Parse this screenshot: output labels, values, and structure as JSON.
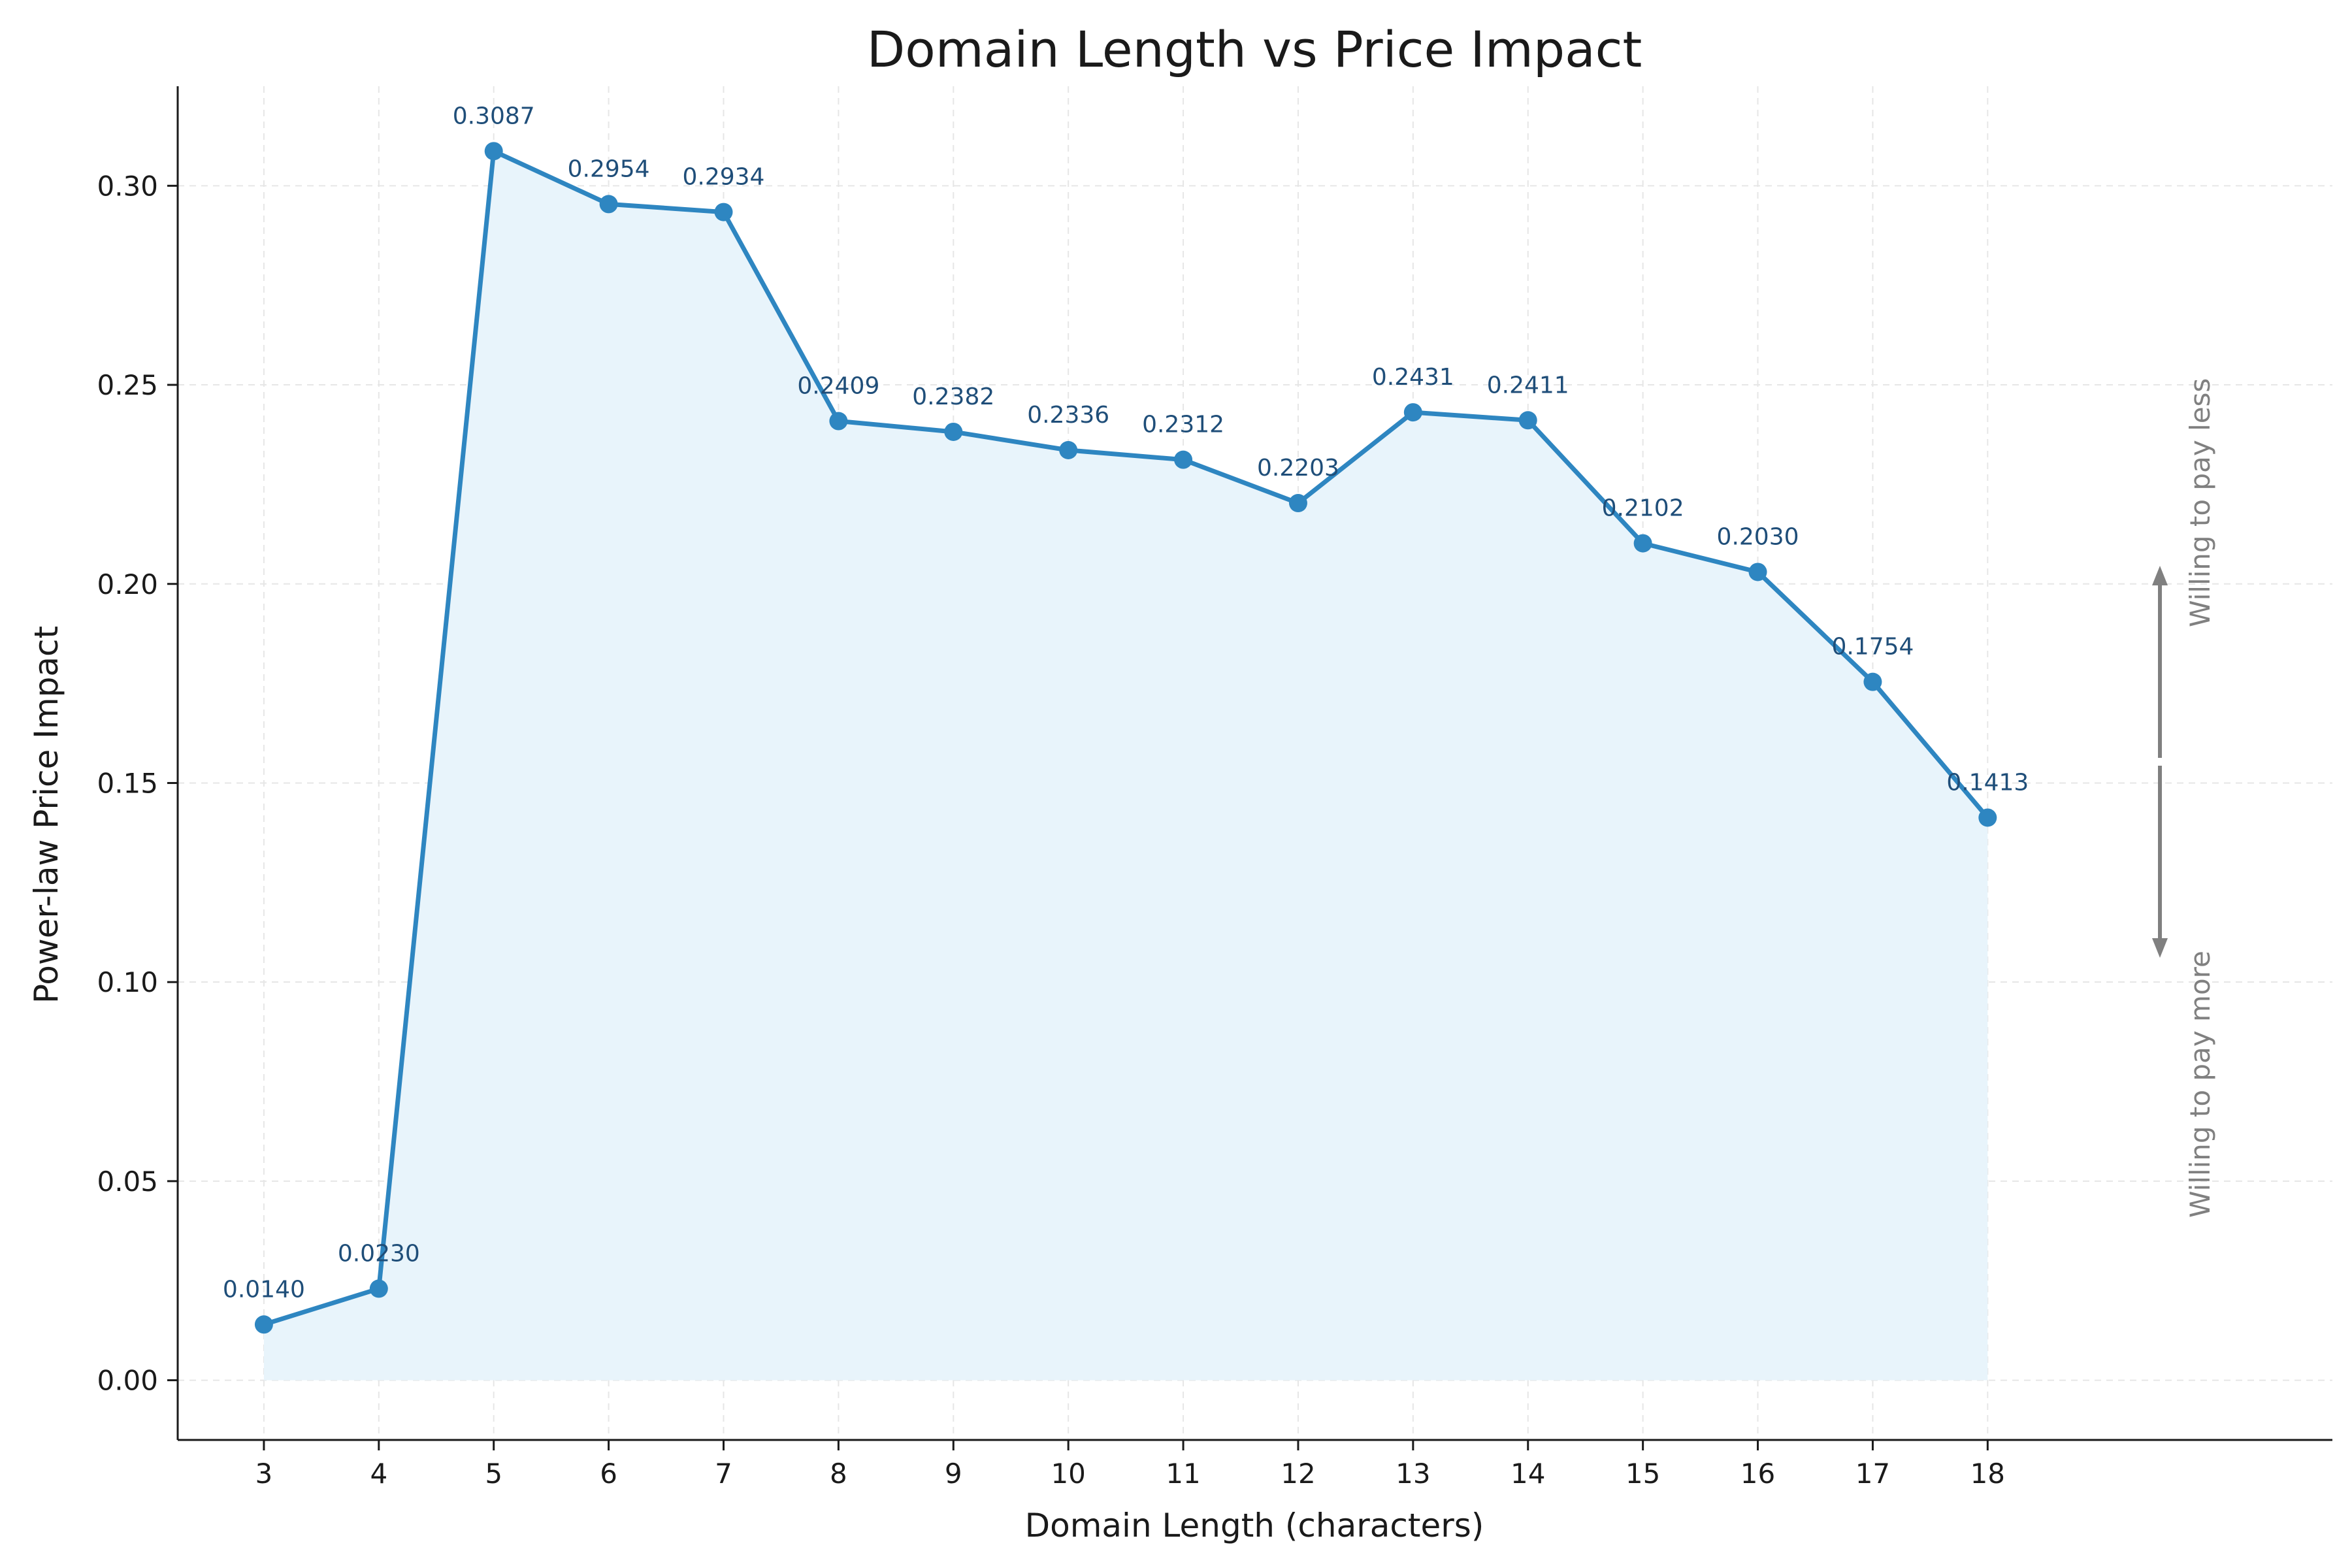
{
  "chart_data": {
    "type": "line",
    "title": "Domain Length vs Price Impact",
    "xlabel": "Domain Length (characters)",
    "ylabel": "Power-law Price Impact",
    "x": [
      3,
      4,
      5,
      6,
      7,
      8,
      9,
      10,
      11,
      12,
      13,
      14,
      15,
      16,
      17,
      18
    ],
    "series": [
      {
        "values": [
          0.014,
          0.023,
          0.3087,
          0.2954,
          0.2934,
          0.2409,
          0.2382,
          0.2336,
          0.2312,
          0.2203,
          0.2431,
          0.2411,
          0.2102,
          0.203,
          0.1754,
          0.1413
        ],
        "data_labels": [
          "0.0140",
          "0.0230",
          "0.3087",
          "0.2954",
          "0.2934",
          "0.2409",
          "0.2382",
          "0.2336",
          "0.2312",
          "0.2203",
          "0.2431",
          "0.2411",
          "0.2102",
          "0.2030",
          "0.1754",
          "0.1413"
        ],
        "color": "#2e86c1",
        "fill_color": "#e8f4fb"
      }
    ],
    "xlim": [
      2.25,
      21.0
    ],
    "ylim": [
      -0.015,
      0.325
    ],
    "yticks": [
      0.0,
      0.05,
      0.1,
      0.15,
      0.2,
      0.25,
      0.3
    ],
    "ytick_labels": [
      "0.00",
      "0.05",
      "0.10",
      "0.15",
      "0.20",
      "0.25",
      "0.30"
    ],
    "grid": true,
    "annotations": {
      "up_text": "Willing to pay less",
      "down_text": "Willing to pay more",
      "arrow_color": "#808080"
    }
  }
}
